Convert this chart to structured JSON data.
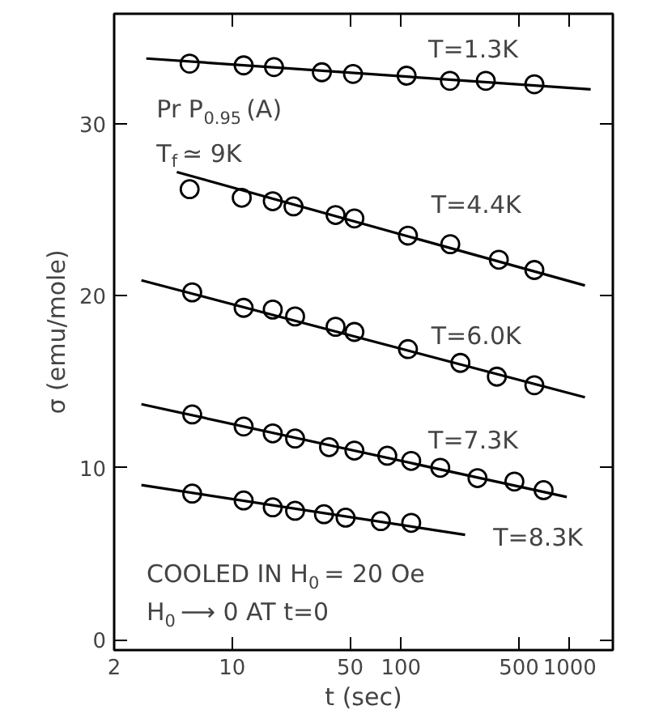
{
  "chart_data": {
    "type": "scatter",
    "xlabel": "t (sec)",
    "ylabel": "σ (emu/mole)",
    "log": "x",
    "grid": false,
    "marker": "circle",
    "xlim": [
      2,
      1800
    ],
    "xticks": [
      2,
      10,
      50,
      100,
      500,
      1000
    ],
    "ylim": [
      -0.6,
      36.4
    ],
    "yticks": [
      0,
      10,
      20,
      30
    ],
    "series": [
      {
        "color": "#000000",
        "x": [
          5.6,
          11.7,
          17.7,
          34,
          52,
          108,
          195,
          318,
          617
        ],
        "values": [
          33.5,
          33.4,
          33.3,
          33.0,
          32.9,
          32.8,
          32.5,
          32.5,
          32.3
        ]
      },
      {
        "type": "line",
        "marker": "none",
        "color": "#000000",
        "x": [
          3.1,
          1330
        ],
        "values": [
          33.8,
          32.0
        ]
      },
      {
        "color": "#000000",
        "x": [
          5.6,
          11.4,
          17.4,
          23.1,
          41,
          53,
          110,
          196,
          380,
          617
        ],
        "values": [
          26.2,
          25.7,
          25.5,
          25.2,
          24.7,
          24.5,
          23.5,
          23.0,
          22.1,
          21.5
        ]
      },
      {
        "type": "line",
        "marker": "none",
        "color": "#000000",
        "x": [
          4.7,
          1230
        ],
        "values": [
          27.2,
          20.6
        ]
      },
      {
        "color": "#000000",
        "x": [
          5.8,
          11.7,
          17.4,
          23.6,
          41,
          53,
          110,
          225,
          370,
          617
        ],
        "values": [
          20.2,
          19.3,
          19.2,
          18.8,
          18.2,
          17.9,
          16.9,
          16.1,
          15.3,
          14.8
        ]
      },
      {
        "type": "line",
        "marker": "none",
        "color": "#000000",
        "x": [
          2.9,
          1230
        ],
        "values": [
          20.9,
          14.1
        ]
      },
      {
        "color": "#000000",
        "x": [
          5.8,
          11.7,
          17.4,
          23.6,
          37.5,
          53,
          83,
          115,
          171,
          284,
          470,
          700
        ],
        "values": [
          13.1,
          12.4,
          12.0,
          11.7,
          11.2,
          11.0,
          10.7,
          10.4,
          10.0,
          9.4,
          9.2,
          8.7
        ]
      },
      {
        "type": "line",
        "marker": "none",
        "color": "#000000",
        "x": [
          2.9,
          960
        ],
        "values": [
          13.7,
          8.3
        ]
      },
      {
        "color": "#000000",
        "x": [
          5.8,
          11.7,
          17.4,
          23.6,
          35,
          47,
          76,
          115
        ],
        "values": [
          8.5,
          8.1,
          7.7,
          7.5,
          7.3,
          7.1,
          6.9,
          6.8
        ]
      },
      {
        "type": "line",
        "marker": "none",
        "color": "#000000",
        "x": [
          2.9,
          240
        ],
        "values": [
          9.0,
          6.1
        ]
      }
    ],
    "annotations": [
      "T=1.3K",
      "T=4.4K",
      "T=6.0K",
      "T=7.3K",
      "T=8.3K",
      "Pr P$_{0.95}$(A)",
      "T$_{f}$ ≃ 9K",
      "COOLED IN H$_{0}$= 20 Oe",
      "H$_{0}$ ⟶ 0 AT t=0"
    ]
  }
}
